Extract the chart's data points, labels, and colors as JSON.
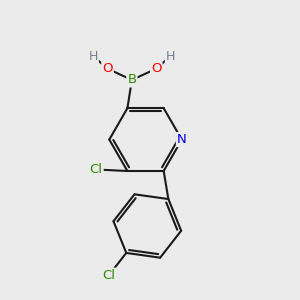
{
  "bg_color": "#ebebeb",
  "bond_color": "#1a1a1a",
  "bond_width": 1.5,
  "atom_colors": {
    "B": "#2e8b00",
    "O": "#ff0000",
    "H": "#708090",
    "N": "#0000ee",
    "Cl": "#2e8b00",
    "C": "#1a1a1a"
  },
  "font_size": 9.5
}
